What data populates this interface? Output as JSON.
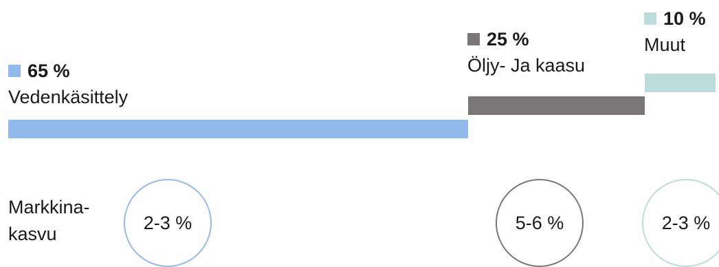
{
  "chart_data": {
    "type": "bar",
    "orientation": "horizontal-stacked-waterfall",
    "segments": [
      {
        "label": "Vedenkäsittely",
        "value_label": "65 %",
        "value": 65,
        "growth": "2-3 %",
        "color": "#92baec"
      },
      {
        "label": "Öljy- Ja kaasu",
        "value_label": "25 %",
        "value": 25,
        "growth": "5-6 %",
        "color": "#7a7677"
      },
      {
        "label": "Muut",
        "value_label": "10 %",
        "value": 10,
        "growth": "2-3 %",
        "color": "#bcdcdb"
      }
    ],
    "growth_label_line1": "Markkina-",
    "growth_label_line2": "kasvu"
  }
}
